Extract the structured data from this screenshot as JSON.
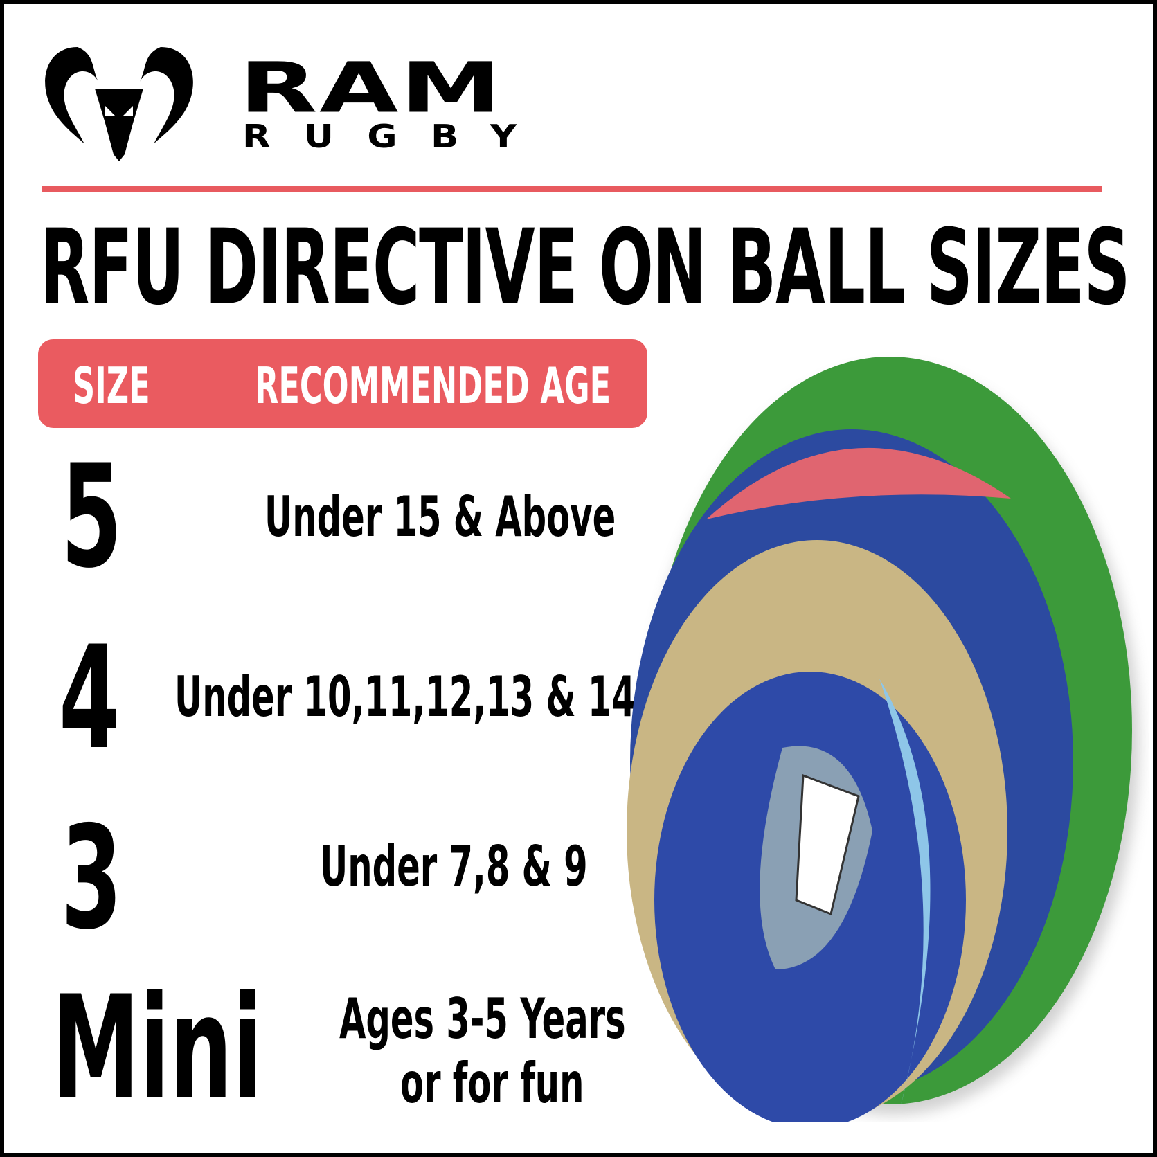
{
  "brand": {
    "name": "RAM",
    "sub": "RUGBY",
    "logo_icon": "ram-head-icon"
  },
  "title": "RFU DIRECTIVE ON BALL SIZES",
  "table": {
    "headers": {
      "size": "SIZE",
      "age": "RECOMMENDED AGE"
    },
    "rows": [
      {
        "size": "5",
        "age": "Under 15 & Above"
      },
      {
        "size": "4",
        "age": "Under 10,11,12,13 & 14"
      },
      {
        "size": "3",
        "age": "Under 7,8 & 9"
      },
      {
        "size": "Mini",
        "age": "Ages 3-5 Years",
        "age2": "or for fun"
      }
    ]
  },
  "colors": {
    "accent": "#ea5b60",
    "text": "#000000"
  }
}
